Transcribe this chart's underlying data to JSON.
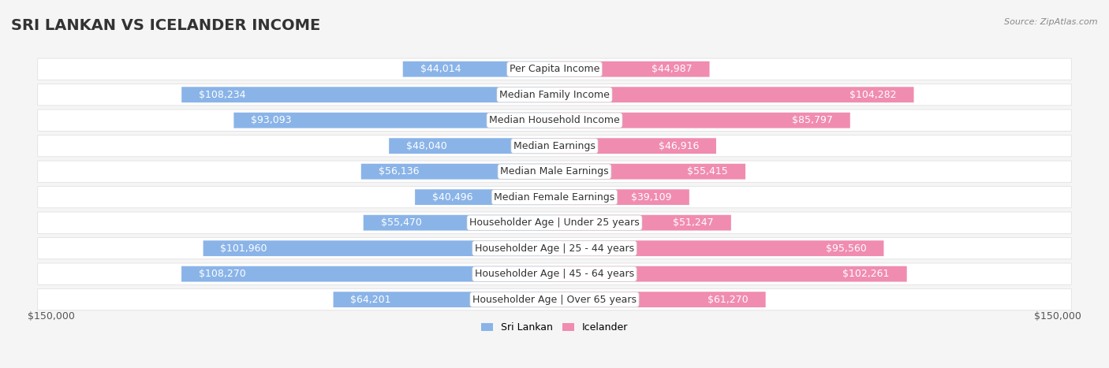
{
  "title": "SRI LANKAN VS ICELANDER INCOME",
  "source": "Source: ZipAtlas.com",
  "categories": [
    "Per Capita Income",
    "Median Family Income",
    "Median Household Income",
    "Median Earnings",
    "Median Male Earnings",
    "Median Female Earnings",
    "Householder Age | Under 25 years",
    "Householder Age | 25 - 44 years",
    "Householder Age | 45 - 64 years",
    "Householder Age | Over 65 years"
  ],
  "sri_lankan_values": [
    44014,
    108234,
    93093,
    48040,
    56136,
    40496,
    55470,
    101960,
    108270,
    64201
  ],
  "icelander_values": [
    44987,
    104282,
    85797,
    46916,
    55415,
    39109,
    51247,
    95560,
    102261,
    61270
  ],
  "sri_lankan_labels": [
    "$44,014",
    "$108,234",
    "$93,093",
    "$48,040",
    "$56,136",
    "$40,496",
    "$55,470",
    "$101,960",
    "$108,270",
    "$64,201"
  ],
  "icelander_labels": [
    "$44,987",
    "$104,282",
    "$85,797",
    "$46,916",
    "$55,415",
    "$39,109",
    "$51,247",
    "$95,560",
    "$102,261",
    "$61,270"
  ],
  "sri_lankan_color": "#8ab4e8",
  "icelander_color": "#f08cb0",
  "sri_lankan_color_dark": "#5b8ed4",
  "icelander_color_dark": "#e8608a",
  "background_color": "#f5f5f5",
  "row_bg_color": "#ffffff",
  "max_value": 150000,
  "legend_sri_lankan": "Sri Lankan",
  "legend_icelander": "Icelander",
  "xlabel_left": "$150,000",
  "xlabel_right": "$150,000",
  "title_fontsize": 14,
  "label_fontsize": 9,
  "category_fontsize": 9
}
